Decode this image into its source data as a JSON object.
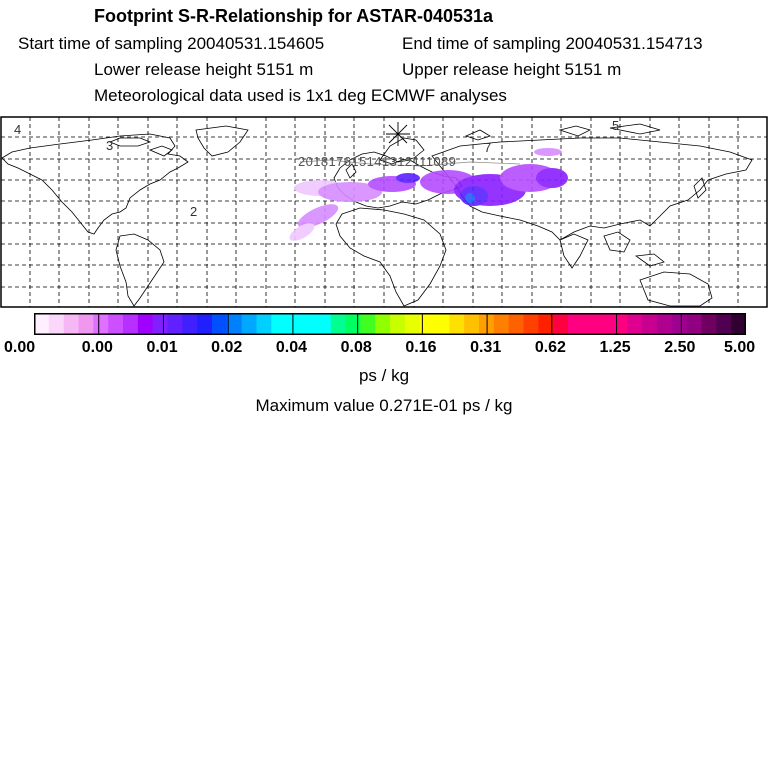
{
  "header": {
    "title": "Footprint S-R-Relationship for ASTAR-040531a",
    "start_time": "Start time of sampling 20040531.154605",
    "end_time": "End time of sampling 20040531.154713",
    "lower_height": "Lower release height 5151 m",
    "upper_height": "Upper release height 5151 m",
    "met_data": "Meteorological data used is 1x1 deg ECMWF analyses"
  },
  "map": {
    "corner_numbers": [
      "4",
      "3",
      "2",
      "7",
      "5"
    ],
    "trajectory_label": "201817615141312111089",
    "track_color": "#888888",
    "plume_colors": [
      "#f0c8ff",
      "#d68cff",
      "#b44cff",
      "#8a1fff",
      "#5a20ff",
      "#1f60ff"
    ]
  },
  "legend": {
    "tick_labels": [
      "0.00",
      "0.00",
      "0.01",
      "0.02",
      "0.04",
      "0.08",
      "0.16",
      "0.31",
      "0.62",
      "1.25",
      "2.50",
      "5.00"
    ],
    "colors": [
      "#fff0ff",
      "#fbd8fb",
      "#f5b8f5",
      "#f098f0",
      "#e070ff",
      "#cc50ff",
      "#b830ff",
      "#a000ff",
      "#8020ff",
      "#6020ff",
      "#4020ff",
      "#2020ff",
      "#0050ff",
      "#0080ff",
      "#00a8ff",
      "#00d0ff",
      "#00ffff",
      "#00ffff",
      "#00ffff",
      "#00ffff",
      "#00ff90",
      "#00ff60",
      "#40ff20",
      "#90ff00",
      "#c8ff00",
      "#e8ff00",
      "#ffff00",
      "#ffff00",
      "#ffe000",
      "#ffc000",
      "#ffa000",
      "#ff8000",
      "#ff6000",
      "#ff4000",
      "#ff2000",
      "#ff0040",
      "#ff0080",
      "#ff0080",
      "#ff0080",
      "#ff0080",
      "#e00090",
      "#c80090",
      "#b00090",
      "#a00090",
      "#900080",
      "#700060",
      "#500050",
      "#300030"
    ]
  },
  "unit_label": "ps / kg",
  "max_value": "Maximum value  0.271E-01 ps / kg"
}
